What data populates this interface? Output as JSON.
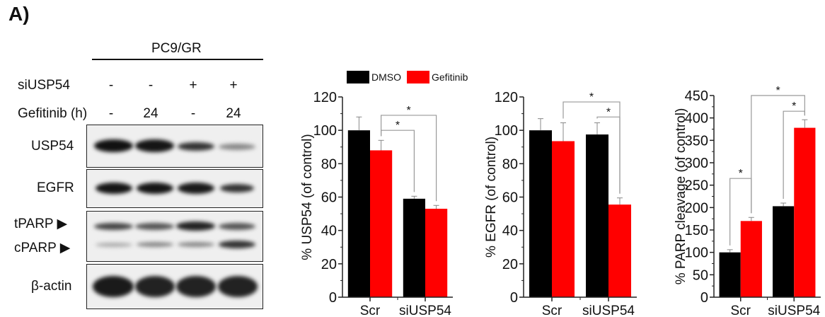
{
  "panel_label": "A)",
  "blot": {
    "cell_line": "PC9/GR",
    "conditions": [
      {
        "label": "siUSP54",
        "values": [
          "-",
          "-",
          "+",
          "+"
        ]
      },
      {
        "label": "Gefitinib (h)",
        "values": [
          "-",
          "24",
          "-",
          "24"
        ]
      }
    ],
    "rows": [
      "USP54",
      "EGFR",
      "tPARP",
      "cPARP",
      "β-actin"
    ],
    "arrow": "▶"
  },
  "legend": [
    {
      "name": "DMSO",
      "color": "#000000"
    },
    {
      "name": "Gefitinib",
      "color": "#ff0000"
    }
  ],
  "chart_data": [
    {
      "type": "bar",
      "categories": [
        "Scr",
        "siUSP54"
      ],
      "series": [
        {
          "name": "DMSO",
          "values": [
            100,
            59
          ],
          "errors": [
            8,
            1.5
          ],
          "color": "#000000"
        },
        {
          "name": "Gefitinib",
          "values": [
            88,
            53
          ],
          "errors": [
            6,
            2
          ],
          "color": "#ff0000"
        }
      ],
      "ylabel": "% USP54 (of control)",
      "ylim": [
        0,
        120
      ],
      "yticks": [
        0,
        20,
        40,
        60,
        80,
        100,
        120
      ],
      "significance": [
        {
          "from": [
            0,
            1
          ],
          "to": [
            1,
            0
          ],
          "level": 100,
          "label": "*"
        },
        {
          "from": [
            0,
            1
          ],
          "to": [
            1,
            1
          ],
          "level": 109,
          "label": "*"
        }
      ]
    },
    {
      "type": "bar",
      "categories": [
        "Scr",
        "siUSP54"
      ],
      "series": [
        {
          "name": "DMSO",
          "values": [
            100,
            97.5
          ],
          "errors": [
            7,
            7
          ],
          "color": "#000000"
        },
        {
          "name": "Gefitinib",
          "values": [
            93.5,
            55.5
          ],
          "errors": [
            11,
            4
          ],
          "color": "#ff0000"
        }
      ],
      "ylabel": "% EGFR (of control)",
      "ylim": [
        0,
        120
      ],
      "yticks": [
        0,
        20,
        40,
        60,
        80,
        100,
        120
      ],
      "significance": [
        {
          "from": [
            1,
            0
          ],
          "to": [
            1,
            1
          ],
          "level": 108,
          "label": "*"
        },
        {
          "from": [
            0,
            1
          ],
          "to": [
            1,
            1
          ],
          "level": 117,
          "label": "*"
        }
      ]
    },
    {
      "type": "bar",
      "categories": [
        "Scr",
        "siUSP54"
      ],
      "series": [
        {
          "name": "DMSO",
          "values": [
            100,
            203
          ],
          "errors": [
            6,
            7
          ],
          "color": "#000000"
        },
        {
          "name": "Gefitinib",
          "values": [
            170,
            378
          ],
          "errors": [
            8,
            18
          ],
          "color": "#ff0000"
        }
      ],
      "ylabel": "% PARP cleavage (of control)",
      "ylim": [
        0,
        450
      ],
      "yticks": [
        0,
        50,
        100,
        150,
        200,
        250,
        300,
        350,
        400,
        450
      ],
      "significance": [
        {
          "from": [
            0,
            0
          ],
          "to": [
            0,
            1
          ],
          "level": 265,
          "label": "*"
        },
        {
          "from": [
            1,
            0
          ],
          "to": [
            1,
            1
          ],
          "level": 415,
          "label": "*"
        },
        {
          "from": [
            0,
            1
          ],
          "to": [
            1,
            1
          ],
          "level": 450,
          "label": "*"
        }
      ]
    }
  ]
}
